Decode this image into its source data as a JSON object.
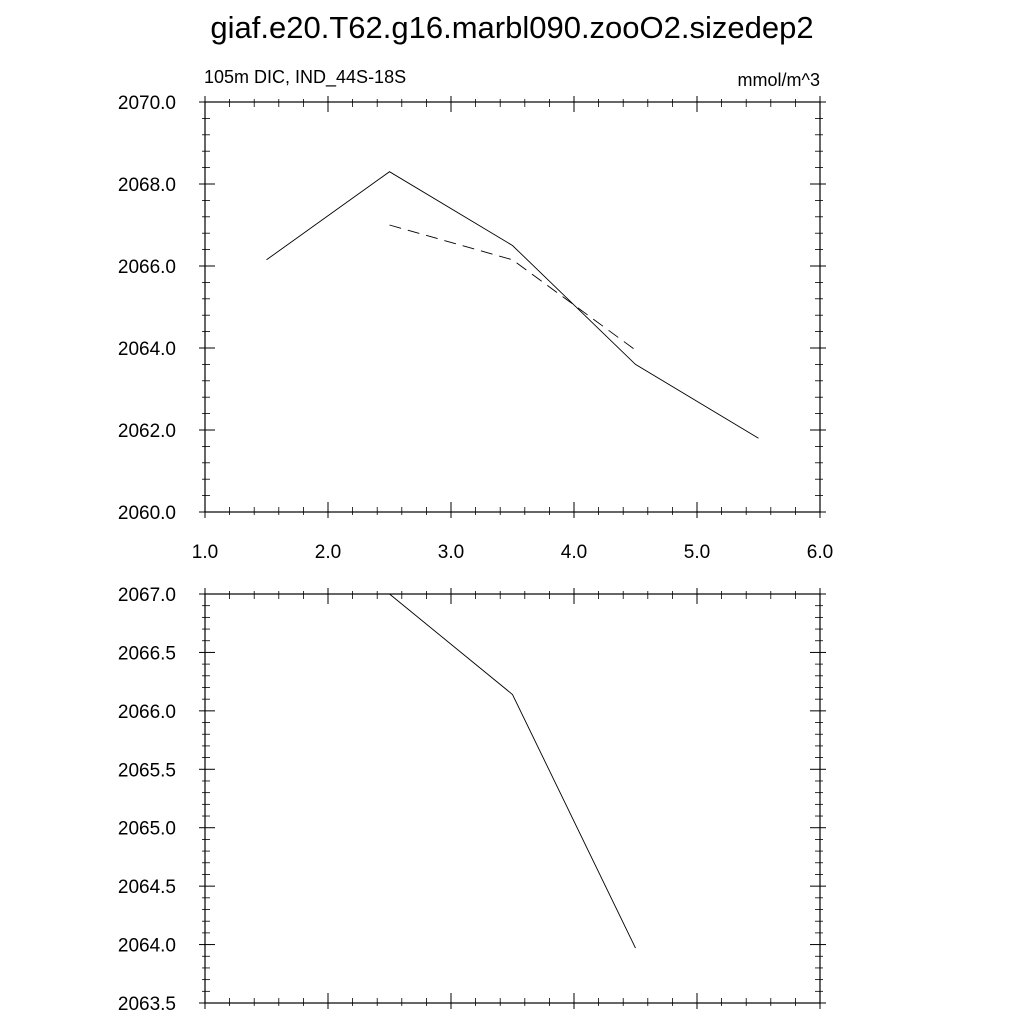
{
  "title": "giaf.e20.T62.g16.marbl090.zooO2.sizedep2",
  "chart_data": [
    {
      "type": "line",
      "left_label": "105m DIC, IND_44S-18S",
      "right_label": "mmol/m^3",
      "xlim": [
        1.0,
        6.0
      ],
      "ylim": [
        2060.0,
        2070.0
      ],
      "x_ticks": [
        "1.0",
        "2.0",
        "3.0",
        "4.0",
        "5.0",
        "6.0"
      ],
      "y_ticks": [
        "2060.0",
        "2062.0",
        "2064.0",
        "2066.0",
        "2068.0",
        "2070.0"
      ],
      "series": [
        {
          "style": "solid",
          "x": [
            1.5,
            2.5,
            3.5,
            4.5,
            5.5
          ],
          "y": [
            2066.15,
            2068.3,
            2066.5,
            2063.6,
            2061.8
          ]
        },
        {
          "style": "dashed",
          "x": [
            2.5,
            3.5,
            4.5
          ],
          "y": [
            2067.0,
            2066.15,
            2063.95
          ]
        }
      ]
    },
    {
      "type": "line",
      "xlim": [
        1.0,
        6.0
      ],
      "ylim": [
        2063.5,
        2067.0
      ],
      "y_ticks": [
        "2063.5",
        "2064.0",
        "2064.5",
        "2065.0",
        "2065.5",
        "2066.0",
        "2066.5",
        "2067.0"
      ],
      "series": [
        {
          "style": "solid",
          "x": [
            2.5,
            3.5,
            4.5
          ],
          "y": [
            2067.0,
            2066.14,
            2063.97
          ]
        }
      ]
    }
  ]
}
